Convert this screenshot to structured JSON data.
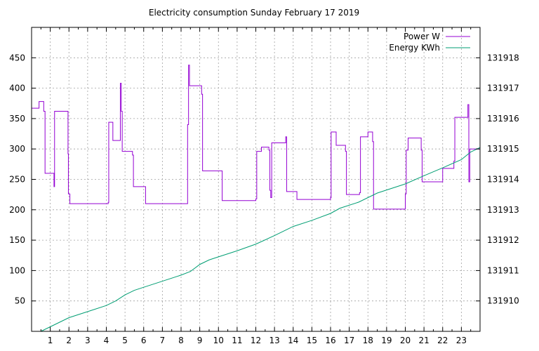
{
  "chart_data": {
    "type": "line",
    "title": "Electricity consumption Sunday February 17 2019",
    "xlabel": "",
    "ylabel": "",
    "grid": true,
    "legend_position": "top-right",
    "x_range": [
      0,
      24
    ],
    "y_range": [
      0,
      500
    ],
    "y2_range": [
      131909,
      131919
    ],
    "x_ticks": [
      1,
      2,
      3,
      4,
      5,
      6,
      7,
      8,
      9,
      10,
      11,
      12,
      13,
      14,
      15,
      16,
      17,
      18,
      19,
      20,
      21,
      22,
      23
    ],
    "y_ticks": [
      50,
      100,
      150,
      200,
      250,
      300,
      350,
      400,
      450
    ],
    "y2_ticks": [
      131910,
      131911,
      131912,
      131913,
      131914,
      131915,
      131916,
      131917,
      131918
    ],
    "series": [
      {
        "name": "Power W",
        "color": "#9400d3",
        "axis": "y",
        "step": true,
        "points": [
          [
            0.0,
            367
          ],
          [
            0.4,
            367
          ],
          [
            0.4,
            378
          ],
          [
            0.65,
            378
          ],
          [
            0.65,
            362
          ],
          [
            0.72,
            362
          ],
          [
            0.72,
            260
          ],
          [
            1.2,
            260
          ],
          [
            1.2,
            238
          ],
          [
            1.23,
            238
          ],
          [
            1.23,
            362
          ],
          [
            1.95,
            362
          ],
          [
            1.95,
            292
          ],
          [
            1.97,
            292
          ],
          [
            1.97,
            226
          ],
          [
            2.05,
            226
          ],
          [
            2.05,
            210
          ],
          [
            4.1,
            210
          ],
          [
            4.1,
            212
          ],
          [
            4.13,
            212
          ],
          [
            4.13,
            344
          ],
          [
            4.35,
            344
          ],
          [
            4.35,
            314
          ],
          [
            4.75,
            314
          ],
          [
            4.75,
            408
          ],
          [
            4.8,
            408
          ],
          [
            4.8,
            362
          ],
          [
            4.85,
            362
          ],
          [
            4.85,
            296
          ],
          [
            5.4,
            296
          ],
          [
            5.4,
            290
          ],
          [
            5.45,
            290
          ],
          [
            5.45,
            238
          ],
          [
            6.1,
            238
          ],
          [
            6.1,
            210
          ],
          [
            8.35,
            210
          ],
          [
            8.35,
            340
          ],
          [
            8.4,
            340
          ],
          [
            8.4,
            438
          ],
          [
            8.45,
            438
          ],
          [
            8.45,
            404
          ],
          [
            9.1,
            404
          ],
          [
            9.1,
            390
          ],
          [
            9.15,
            390
          ],
          [
            9.15,
            264
          ],
          [
            10.2,
            264
          ],
          [
            10.2,
            215
          ],
          [
            12.0,
            215
          ],
          [
            12.0,
            218
          ],
          [
            12.05,
            218
          ],
          [
            12.05,
            296
          ],
          [
            12.3,
            296
          ],
          [
            12.3,
            303
          ],
          [
            12.7,
            303
          ],
          [
            12.7,
            298
          ],
          [
            12.75,
            298
          ],
          [
            12.75,
            232
          ],
          [
            12.8,
            232
          ],
          [
            12.8,
            220
          ],
          [
            12.85,
            220
          ],
          [
            12.85,
            310
          ],
          [
            13.6,
            310
          ],
          [
            13.6,
            320
          ],
          [
            13.65,
            320
          ],
          [
            13.65,
            230
          ],
          [
            14.2,
            230
          ],
          [
            14.2,
            217
          ],
          [
            16.0,
            217
          ],
          [
            16.0,
            220
          ],
          [
            16.03,
            220
          ],
          [
            16.03,
            328
          ],
          [
            16.3,
            328
          ],
          [
            16.3,
            306
          ],
          [
            16.8,
            306
          ],
          [
            16.8,
            296
          ],
          [
            16.85,
            296
          ],
          [
            16.85,
            225
          ],
          [
            17.55,
            225
          ],
          [
            17.55,
            228
          ],
          [
            17.6,
            228
          ],
          [
            17.6,
            320
          ],
          [
            18.0,
            320
          ],
          [
            18.0,
            328
          ],
          [
            18.25,
            328
          ],
          [
            18.25,
            312
          ],
          [
            18.3,
            312
          ],
          [
            18.3,
            201
          ],
          [
            20.0,
            201
          ],
          [
            20.0,
            226
          ],
          [
            20.05,
            226
          ],
          [
            20.05,
            298
          ],
          [
            20.15,
            298
          ],
          [
            20.15,
            318
          ],
          [
            20.85,
            318
          ],
          [
            20.85,
            298
          ],
          [
            20.9,
            298
          ],
          [
            20.9,
            246
          ],
          [
            22.0,
            246
          ],
          [
            22.0,
            268
          ],
          [
            22.6,
            268
          ],
          [
            22.6,
            280
          ],
          [
            22.65,
            280
          ],
          [
            22.65,
            352
          ],
          [
            23.35,
            352
          ],
          [
            23.35,
            373
          ],
          [
            23.4,
            373
          ],
          [
            23.4,
            246
          ],
          [
            23.45,
            246
          ],
          [
            23.45,
            300
          ],
          [
            24.0,
            300
          ]
        ]
      },
      {
        "name": "Energy KWh",
        "color": "#009e73",
        "axis": "y2",
        "step": false,
        "points": [
          [
            0.5,
            131909.0
          ],
          [
            1.0,
            131909.15
          ],
          [
            1.5,
            131909.3
          ],
          [
            2.0,
            131909.45
          ],
          [
            3.0,
            131909.65
          ],
          [
            4.0,
            131909.85
          ],
          [
            4.5,
            131910.0
          ],
          [
            5.0,
            131910.2
          ],
          [
            5.5,
            131910.35
          ],
          [
            6.0,
            131910.45
          ],
          [
            7.0,
            131910.65
          ],
          [
            8.0,
            131910.85
          ],
          [
            8.5,
            131910.97
          ],
          [
            9.0,
            131911.2
          ],
          [
            9.5,
            131911.35
          ],
          [
            10.0,
            131911.45
          ],
          [
            11.0,
            131911.65
          ],
          [
            12.0,
            131911.87
          ],
          [
            13.0,
            131912.15
          ],
          [
            14.0,
            131912.45
          ],
          [
            15.0,
            131912.65
          ],
          [
            16.0,
            131912.88
          ],
          [
            16.5,
            131913.05
          ],
          [
            17.5,
            131913.25
          ],
          [
            18.5,
            131913.55
          ],
          [
            20.0,
            131913.85
          ],
          [
            21.0,
            131914.12
          ],
          [
            22.0,
            131914.38
          ],
          [
            23.0,
            131914.65
          ],
          [
            23.5,
            131914.9
          ],
          [
            24.0,
            131915.05
          ]
        ]
      }
    ]
  }
}
